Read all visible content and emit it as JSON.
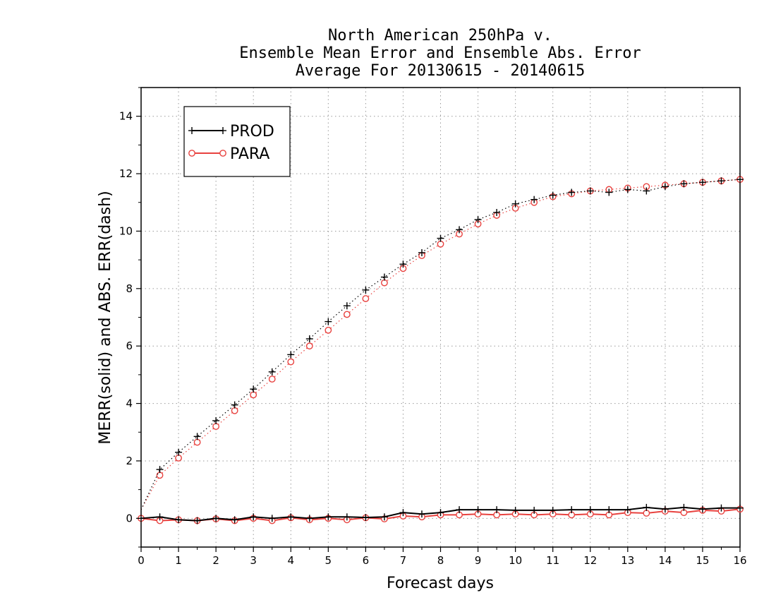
{
  "chart_data": {
    "type": "line",
    "title": [
      "North American 250hPa v.",
      "Ensemble Mean Error and Ensemble Abs. Error",
      "Average For 20130615 - 20140615"
    ],
    "xlabel": "Forecast days",
    "ylabel": "MERR(solid) and ABS. ERR(dash)",
    "xlim": [
      0,
      16
    ],
    "ylim": [
      -1,
      15
    ],
    "xticks": [
      "0",
      "1",
      "2",
      "3",
      "4",
      "5",
      "6",
      "7",
      "8",
      "9",
      "10",
      "11",
      "12",
      "13",
      "14",
      "15",
      "16"
    ],
    "yticks": [
      "0",
      "2",
      "4",
      "6",
      "8",
      "10",
      "12",
      "14"
    ],
    "grid": true,
    "legend_position": "top-left",
    "x": [
      0,
      0.5,
      1,
      1.5,
      2,
      2.5,
      3,
      3.5,
      4,
      4.5,
      5,
      5.5,
      6,
      6.5,
      7,
      7.5,
      8,
      8.5,
      9,
      9.5,
      10,
      10.5,
      11,
      11.5,
      12,
      12.5,
      13,
      13.5,
      14,
      14.5,
      15,
      15.5,
      16
    ],
    "series": [
      {
        "name": "PROD",
        "color": "#000000",
        "marker": "plus",
        "mean_error": [
          0.0,
          0.05,
          -0.05,
          -0.08,
          0.0,
          -0.05,
          0.05,
          0.0,
          0.05,
          0.0,
          0.05,
          0.05,
          0.03,
          0.05,
          0.2,
          0.15,
          0.2,
          0.3,
          0.3,
          0.3,
          0.28,
          0.28,
          0.28,
          0.3,
          0.3,
          0.3,
          0.3,
          0.38,
          0.32,
          0.38,
          0.32,
          0.36,
          0.36
        ],
        "abs_error": [
          0.3,
          1.7,
          2.3,
          2.85,
          3.4,
          3.95,
          4.5,
          5.1,
          5.7,
          6.25,
          6.85,
          7.4,
          7.95,
          8.4,
          8.85,
          9.25,
          9.75,
          10.05,
          10.4,
          10.65,
          10.95,
          11.1,
          11.25,
          11.35,
          11.4,
          11.35,
          11.45,
          11.4,
          11.55,
          11.65,
          11.7,
          11.75,
          11.8
        ]
      },
      {
        "name": "PARA",
        "color": "#e8423f",
        "marker": "circle",
        "mean_error": [
          0.0,
          -0.08,
          -0.05,
          -0.08,
          -0.02,
          -0.08,
          0.0,
          -0.08,
          0.02,
          -0.05,
          0.0,
          -0.05,
          0.02,
          -0.02,
          0.08,
          0.05,
          0.12,
          0.12,
          0.15,
          0.12,
          0.15,
          0.12,
          0.15,
          0.12,
          0.15,
          0.12,
          0.2,
          0.18,
          0.25,
          0.2,
          0.28,
          0.25,
          0.32
        ],
        "abs_error": [
          0.3,
          1.5,
          2.1,
          2.65,
          3.2,
          3.75,
          4.3,
          4.85,
          5.45,
          6.0,
          6.55,
          7.1,
          7.65,
          8.2,
          8.7,
          9.15,
          9.55,
          9.9,
          10.25,
          10.55,
          10.8,
          11.0,
          11.2,
          11.3,
          11.4,
          11.45,
          11.5,
          11.55,
          11.6,
          11.65,
          11.7,
          11.75,
          11.8
        ]
      }
    ]
  }
}
